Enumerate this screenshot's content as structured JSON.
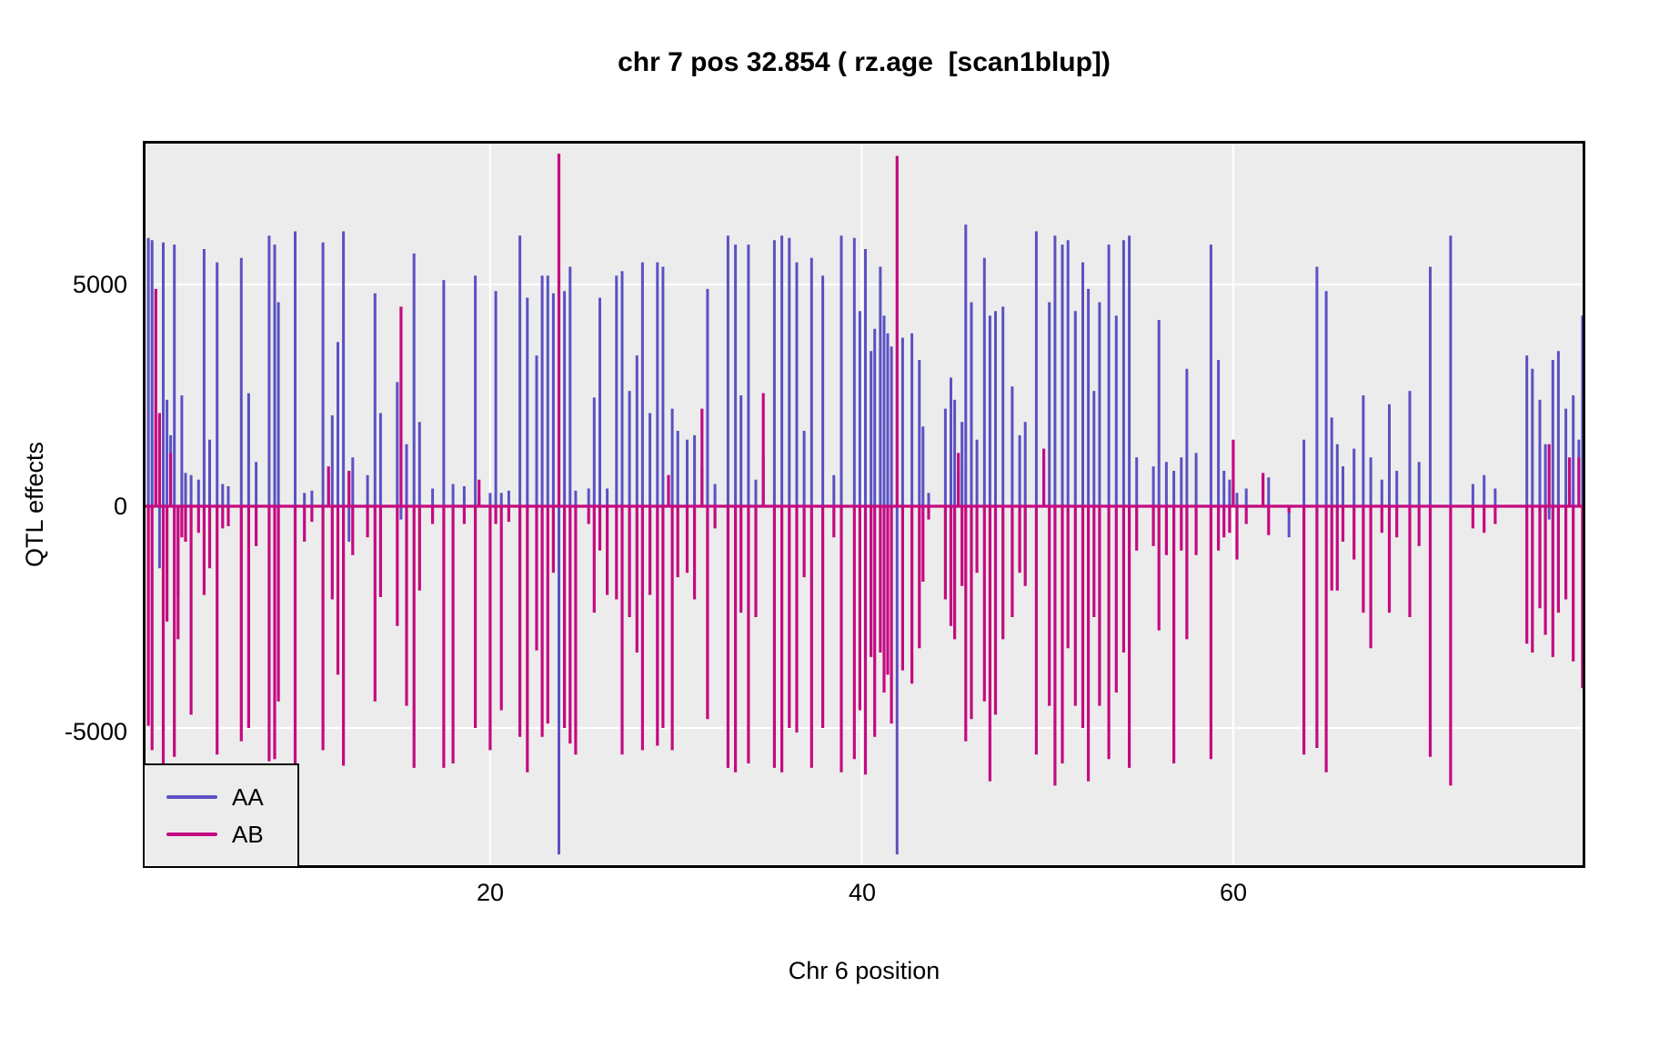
{
  "title": "chr 7 pos 32.854 ( rz.age  [scan1blup])",
  "axes": {
    "x_label": "Chr 6 position",
    "y_label": "QTL effects",
    "x_tick_labels": [
      "20",
      "40",
      "60"
    ],
    "y_tick_labels": [
      "5000",
      "0",
      "-5000"
    ]
  },
  "legend": {
    "items": [
      {
        "label": "AA",
        "color": "#5b51c3"
      },
      {
        "label": "AB",
        "color": "#c40a80"
      }
    ]
  },
  "chart_data": {
    "type": "line",
    "title": "chr 7 pos 32.854 ( rz.age  [scan1blup])",
    "xlabel": "Chr 6 position",
    "ylabel": "QTL effects",
    "xlim": [
      1.3,
      78.95
    ],
    "ylim": [
      -8156,
      8238
    ],
    "x_gridlines": [
      20,
      40,
      60
    ],
    "y_gridlines": [
      5000,
      0,
      -5000
    ],
    "grid_color": "#ffffff",
    "plot_bg": "#ececec",
    "border_color": "#000000",
    "legend_position": "bottom-left",
    "baseline": 0,
    "series": [
      {
        "name": "AA",
        "color": "#5b51c3",
        "stroke_width": 3
      },
      {
        "name": "AB",
        "color": "#c40a80",
        "stroke_width": 3.2
      }
    ],
    "spikes_format": [
      "position_cM",
      "AA_effect",
      "AB_effect"
    ],
    "spikes": [
      [
        1.35,
        3400,
        -3300
      ],
      [
        1.6,
        6050,
        -4950
      ],
      [
        1.8,
        6000,
        -5500
      ],
      [
        2.0,
        1500,
        4900
      ],
      [
        2.2,
        -1400,
        2100
      ],
      [
        2.4,
        5950,
        -5850
      ],
      [
        2.6,
        2400,
        -2600
      ],
      [
        2.8,
        1600,
        1200
      ],
      [
        3.0,
        5900,
        -5650
      ],
      [
        3.2,
        -2000,
        -3000
      ],
      [
        3.4,
        2500,
        -700
      ],
      [
        3.6,
        750,
        -800
      ],
      [
        3.9,
        700,
        -4700
      ],
      [
        4.3,
        600,
        -600
      ],
      [
        4.6,
        5800,
        -2000
      ],
      [
        4.9,
        1500,
        -1400
      ],
      [
        5.3,
        5500,
        -5600
      ],
      [
        5.6,
        500,
        -500
      ],
      [
        5.9,
        450,
        -450
      ],
      [
        6.6,
        5600,
        -5300
      ],
      [
        7.0,
        2550,
        -5000
      ],
      [
        7.4,
        1000,
        -900
      ],
      [
        8.1,
        6100,
        -5750
      ],
      [
        8.4,
        5900,
        -5700
      ],
      [
        8.6,
        4600,
        -4400
      ],
      [
        9.5,
        6200,
        -6100
      ],
      [
        10.0,
        300,
        -800
      ],
      [
        10.4,
        350,
        -350
      ],
      [
        11.0,
        5950,
        -5500
      ],
      [
        11.3,
        700,
        900
      ],
      [
        11.5,
        2050,
        -2100
      ],
      [
        11.8,
        3700,
        -3800
      ],
      [
        12.1,
        6200,
        -5850
      ],
      [
        12.4,
        -800,
        800
      ],
      [
        12.6,
        1100,
        -1100
      ],
      [
        13.4,
        700,
        -700
      ],
      [
        13.8,
        4800,
        -4400
      ],
      [
        14.1,
        2100,
        -2050
      ],
      [
        15.0,
        2800,
        -2700
      ],
      [
        15.2,
        -300,
        4500
      ],
      [
        15.5,
        1400,
        -4500
      ],
      [
        15.9,
        5700,
        -5900
      ],
      [
        16.2,
        1900,
        -1900
      ],
      [
        16.9,
        400,
        -400
      ],
      [
        17.5,
        5100,
        -5900
      ],
      [
        18.0,
        500,
        -5800
      ],
      [
        18.6,
        450,
        -400
      ],
      [
        19.2,
        5200,
        -5000
      ],
      [
        19.4,
        200,
        600
      ],
      [
        20.0,
        300,
        -5500
      ],
      [
        20.3,
        4850,
        -400
      ],
      [
        20.6,
        300,
        -4600
      ],
      [
        21.0,
        350,
        -350
      ],
      [
        21.6,
        6100,
        -5200
      ],
      [
        22.0,
        4700,
        -6000
      ],
      [
        22.5,
        3400,
        -3250
      ],
      [
        22.8,
        5200,
        -5200
      ],
      [
        23.1,
        5200,
        -4900
      ],
      [
        23.4,
        4800,
        -1500
      ],
      [
        23.7,
        -7850,
        7950
      ],
      [
        24.0,
        4850,
        -5000
      ],
      [
        24.3,
        5400,
        -5350
      ],
      [
        24.6,
        350,
        -5600
      ],
      [
        25.3,
        400,
        -400
      ],
      [
        25.6,
        2450,
        -2400
      ],
      [
        25.9,
        4700,
        -1000
      ],
      [
        26.3,
        400,
        -2000
      ],
      [
        26.8,
        5200,
        -2100
      ],
      [
        27.1,
        5300,
        -5600
      ],
      [
        27.5,
        2600,
        -2500
      ],
      [
        27.9,
        3400,
        -3300
      ],
      [
        28.2,
        5500,
        -5500
      ],
      [
        28.6,
        2100,
        -2000
      ],
      [
        29.0,
        5500,
        -5400
      ],
      [
        29.3,
        5400,
        -5000
      ],
      [
        29.6,
        700,
        700
      ],
      [
        29.8,
        2200,
        -5500
      ],
      [
        30.1,
        1700,
        -1600
      ],
      [
        30.6,
        1500,
        -1500
      ],
      [
        31.0,
        1600,
        -2100
      ],
      [
        31.4,
        900,
        2200
      ],
      [
        31.7,
        4900,
        -4800
      ],
      [
        32.1,
        500,
        -500
      ],
      [
        32.8,
        6100,
        -5900
      ],
      [
        33.2,
        5900,
        -6000
      ],
      [
        33.5,
        2500,
        -2400
      ],
      [
        33.9,
        5900,
        -5800
      ],
      [
        34.3,
        600,
        -2500
      ],
      [
        34.7,
        1100,
        2550
      ],
      [
        35.3,
        6000,
        -5900
      ],
      [
        35.7,
        6100,
        -6000
      ],
      [
        36.1,
        6050,
        -5000
      ],
      [
        36.5,
        5500,
        -5100
      ],
      [
        36.9,
        1700,
        -1600
      ],
      [
        37.3,
        5600,
        -5900
      ],
      [
        37.9,
        5200,
        -5000
      ],
      [
        38.5,
        700,
        -700
      ],
      [
        38.9,
        6100,
        -6000
      ],
      [
        39.6,
        6050,
        -5700
      ],
      [
        39.9,
        4400,
        -4600
      ],
      [
        40.2,
        5800,
        -6050
      ],
      [
        40.5,
        3500,
        -3400
      ],
      [
        40.7,
        4000,
        -5200
      ],
      [
        41.0,
        5400,
        -3300
      ],
      [
        41.2,
        4300,
        -4200
      ],
      [
        41.4,
        3900,
        -3800
      ],
      [
        41.6,
        3600,
        -4900
      ],
      [
        41.9,
        -7850,
        7900
      ],
      [
        42.2,
        3800,
        -3700
      ],
      [
        42.7,
        3900,
        -4000
      ],
      [
        43.1,
        3300,
        -3200
      ],
      [
        43.3,
        1800,
        -1700
      ],
      [
        43.6,
        300,
        -300
      ],
      [
        44.5,
        2200,
        -2100
      ],
      [
        44.8,
        2900,
        -2700
      ],
      [
        45.0,
        2400,
        -3000
      ],
      [
        45.2,
        800,
        1200
      ],
      [
        45.4,
        1900,
        -1800
      ],
      [
        45.6,
        6350,
        -5300
      ],
      [
        45.9,
        4600,
        -4800
      ],
      [
        46.2,
        1500,
        -1500
      ],
      [
        46.6,
        5600,
        -4400
      ],
      [
        46.9,
        4300,
        -6200
      ],
      [
        47.2,
        4400,
        -4700
      ],
      [
        47.6,
        4500,
        -3000
      ],
      [
        48.1,
        2700,
        -2500
      ],
      [
        48.5,
        1600,
        -1500
      ],
      [
        48.8,
        1900,
        -1800
      ],
      [
        49.4,
        6200,
        -5600
      ],
      [
        49.8,
        800,
        1300
      ],
      [
        50.1,
        4600,
        -4500
      ],
      [
        50.4,
        6100,
        -6300
      ],
      [
        50.8,
        5900,
        -5800
      ],
      [
        51.1,
        6000,
        -3200
      ],
      [
        51.5,
        4400,
        -4500
      ],
      [
        51.9,
        5500,
        -5000
      ],
      [
        52.2,
        4900,
        -6200
      ],
      [
        52.5,
        2600,
        -2500
      ],
      [
        52.8,
        4600,
        -4500
      ],
      [
        53.3,
        5900,
        -5700
      ],
      [
        53.7,
        4300,
        -4200
      ],
      [
        54.1,
        6000,
        -3300
      ],
      [
        54.4,
        6100,
        -5900
      ],
      [
        54.8,
        1100,
        -1000
      ],
      [
        55.7,
        900,
        -900
      ],
      [
        56.0,
        4200,
        -2800
      ],
      [
        56.4,
        1000,
        -1100
      ],
      [
        56.8,
        800,
        -5800
      ],
      [
        57.2,
        1100,
        -1000
      ],
      [
        57.5,
        3100,
        -3000
      ],
      [
        58.0,
        1200,
        -1100
      ],
      [
        58.8,
        5900,
        -5700
      ],
      [
        59.2,
        3300,
        -1000
      ],
      [
        59.5,
        800,
        -700
      ],
      [
        59.8,
        600,
        -600
      ],
      [
        60.0,
        400,
        1500
      ],
      [
        60.2,
        300,
        -1200
      ],
      [
        60.7,
        400,
        -400
      ],
      [
        61.6,
        700,
        750
      ],
      [
        61.9,
        650,
        -650
      ],
      [
        63.0,
        -700,
        -150
      ],
      [
        63.8,
        1500,
        -5600
      ],
      [
        64.5,
        5400,
        -5450
      ],
      [
        65.0,
        4850,
        -6000
      ],
      [
        65.3,
        2000,
        -1900
      ],
      [
        65.6,
        1400,
        -1900
      ],
      [
        65.9,
        900,
        -800
      ],
      [
        66.5,
        1300,
        -1200
      ],
      [
        67.0,
        2500,
        -2400
      ],
      [
        67.4,
        1100,
        -3200
      ],
      [
        68.0,
        600,
        -600
      ],
      [
        68.4,
        2300,
        -2400
      ],
      [
        68.8,
        800,
        -700
      ],
      [
        69.5,
        2600,
        -2500
      ],
      [
        70.0,
        1000,
        -900
      ],
      [
        70.6,
        5400,
        -5650
      ],
      [
        71.7,
        6100,
        -6300
      ],
      [
        72.9,
        500,
        -500
      ],
      [
        73.5,
        700,
        -600
      ],
      [
        74.1,
        400,
        -400
      ],
      [
        75.8,
        3400,
        -3100
      ],
      [
        76.1,
        3100,
        -3300
      ],
      [
        76.5,
        2400,
        -2300
      ],
      [
        76.8,
        1400,
        -2900
      ],
      [
        77.0,
        -300,
        1400
      ],
      [
        77.2,
        3300,
        -3400
      ],
      [
        77.5,
        3500,
        -2400
      ],
      [
        77.9,
        2200,
        -2100
      ],
      [
        78.1,
        300,
        1100
      ],
      [
        78.3,
        2500,
        -3500
      ],
      [
        78.6,
        1500,
        1100
      ],
      [
        78.8,
        4300,
        -4100
      ]
    ]
  }
}
